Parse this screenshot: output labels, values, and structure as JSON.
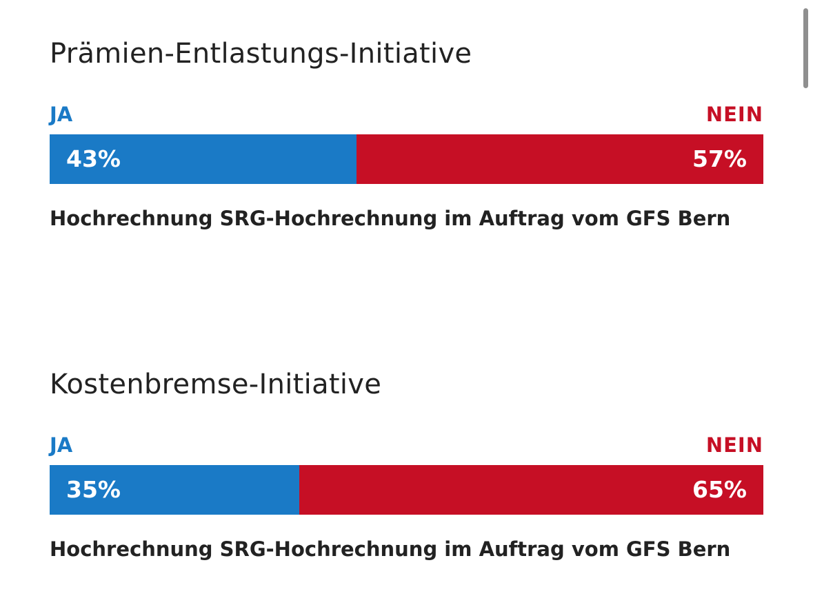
{
  "chart_data": [
    {
      "type": "bar",
      "orientation": "horizontal-stacked",
      "title": "Prämien-Entlastungs-Initiative",
      "categories": [
        "JA",
        "NEIN"
      ],
      "values": [
        43,
        57
      ],
      "value_labels": [
        "43%",
        "57%"
      ],
      "unit": "%",
      "source": "Hochrechnung SRG-Hochrechnung im Auftrag vom GFS Bern"
    },
    {
      "type": "bar",
      "orientation": "horizontal-stacked",
      "title": "Kostenbremse-Initiative",
      "categories": [
        "JA",
        "NEIN"
      ],
      "values": [
        35,
        65
      ],
      "value_labels": [
        "35%",
        "65%"
      ],
      "unit": "%",
      "source": "Hochrechnung SRG-Hochrechnung im Auftrag vom GFS Bern"
    }
  ],
  "colors": {
    "yes": "#1a7ac6",
    "no": "#c60f25",
    "text": "#222222"
  }
}
